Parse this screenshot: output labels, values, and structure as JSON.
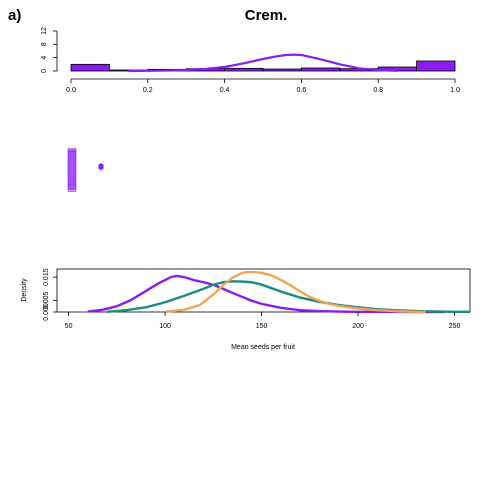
{
  "panel_label": "a)",
  "title": "Crem.",
  "colors": {
    "purple": "#8a1cf0",
    "teal": "#1a8c7c",
    "orange": "#f0a656",
    "axis": "#000000"
  },
  "chart_data": [
    {
      "type": "histogram",
      "xlim": [
        0,
        1
      ],
      "ylim": [
        0,
        12
      ],
      "x_ticks": [
        "0.0",
        "0.2",
        "0.4",
        "0.6",
        "0.8",
        "1.0"
      ],
      "y_ticks": [
        "0",
        "4",
        "8",
        "12"
      ],
      "bins": [
        {
          "x0": 0.0,
          "x1": 0.1,
          "count": 2
        },
        {
          "x0": 0.1,
          "x1": 0.2,
          "count": 0.3
        },
        {
          "x0": 0.2,
          "x1": 0.3,
          "count": 0.5
        },
        {
          "x0": 0.3,
          "x1": 0.4,
          "count": 0.7
        },
        {
          "x0": 0.4,
          "x1": 0.5,
          "count": 0.8
        },
        {
          "x0": 0.5,
          "x1": 0.6,
          "count": 0.6
        },
        {
          "x0": 0.6,
          "x1": 0.7,
          "count": 0.9
        },
        {
          "x0": 0.7,
          "x1": 0.8,
          "count": 0.7
        },
        {
          "x0": 0.8,
          "x1": 0.9,
          "count": 1.2
        },
        {
          "x0": 0.9,
          "x1": 1.0,
          "count": 3
        }
      ],
      "density_curve": {
        "x": [
          0.15,
          0.2,
          0.25,
          0.3,
          0.35,
          0.4,
          0.45,
          0.5,
          0.53,
          0.56,
          0.58,
          0.6,
          0.62,
          0.65,
          0.7,
          0.75,
          0.8,
          0.85
        ],
        "y": [
          0.0,
          0.05,
          0.15,
          0.3,
          0.6,
          1.2,
          2.3,
          3.6,
          4.3,
          4.8,
          4.9,
          4.8,
          4.3,
          3.5,
          2.0,
          0.8,
          0.25,
          0.05
        ]
      }
    },
    {
      "type": "scatter",
      "strip_points": [
        8.5,
        10,
        12,
        14,
        16,
        18,
        20,
        22,
        24,
        26,
        28,
        30,
        32,
        34,
        36,
        38,
        40,
        42,
        44,
        46,
        48
      ],
      "point_summary": {
        "mean": 19,
        "lower": 15,
        "upper": 24
      }
    },
    {
      "type": "line",
      "xlabel": "Mean seeds per fruit",
      "ylabel": "Density",
      "xlim": [
        44,
        258
      ],
      "ylim": [
        0,
        0.0185
      ],
      "x_ticks": [
        "50",
        "100",
        "150",
        "200",
        "250"
      ],
      "y_ticks": [
        "0.000",
        "0.005",
        "0.015"
      ],
      "series": [
        {
          "color": "purple",
          "x": [
            60,
            68,
            75,
            82,
            90,
            97,
            103,
            106,
            110,
            115,
            120,
            125,
            130,
            135,
            140,
            145,
            150,
            160,
            170,
            180,
            190,
            200,
            220,
            245
          ],
          "y": [
            0.0002,
            0.001,
            0.0025,
            0.005,
            0.009,
            0.0125,
            0.015,
            0.0155,
            0.015,
            0.0137,
            0.0128,
            0.0117,
            0.01,
            0.0082,
            0.0065,
            0.0048,
            0.0035,
            0.0018,
            0.0008,
            0.0004,
            0.0002,
            0.0001,
            5e-05,
            0.0
          ]
        },
        {
          "color": "teal",
          "x": [
            70,
            80,
            90,
            100,
            110,
            120,
            125,
            130,
            135,
            140,
            145,
            150,
            155,
            160,
            170,
            180,
            190,
            200,
            210,
            220,
            235,
            250,
            258
          ],
          "y": [
            0.0001,
            0.0008,
            0.002,
            0.0042,
            0.007,
            0.01,
            0.0117,
            0.0128,
            0.0132,
            0.0131,
            0.0128,
            0.0118,
            0.0103,
            0.0088,
            0.0062,
            0.0044,
            0.003,
            0.002,
            0.0012,
            0.0007,
            0.0003,
            0.0001,
            5e-05
          ]
        },
        {
          "color": "orange",
          "x": [
            100,
            110,
            118,
            125,
            130,
            135,
            140,
            143,
            146,
            150,
            155,
            160,
            165,
            170,
            175,
            180,
            185,
            190,
            200,
            210,
            220,
            235
          ],
          "y": [
            0.0001,
            0.001,
            0.003,
            0.0075,
            0.0115,
            0.0148,
            0.0168,
            0.0172,
            0.0172,
            0.0168,
            0.0158,
            0.0138,
            0.0115,
            0.0088,
            0.0065,
            0.0048,
            0.0035,
            0.0026,
            0.0015,
            0.0008,
            0.0003,
            0.0
          ]
        }
      ]
    }
  ]
}
